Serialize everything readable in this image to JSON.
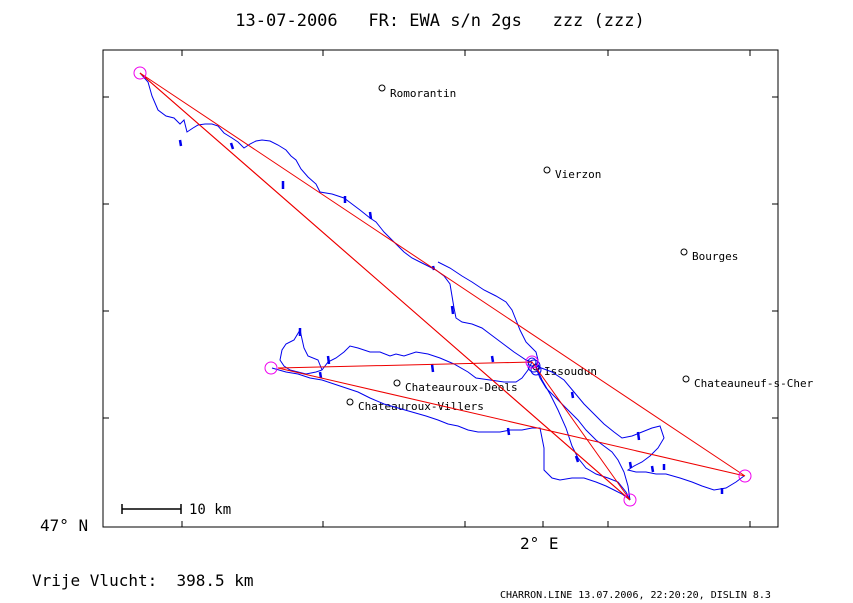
{
  "title": "13-07-2006   FR: EWA s/n 2gs   zzz (zzz)",
  "axes": {
    "y_label": "47° N",
    "x_label": "2° E"
  },
  "scale_bar": {
    "label": "10 km"
  },
  "footer": {
    "distance": "Vrije Vlucht:  398.5 km",
    "credit": "CHARRON.LINE 13.07.2006, 22:20:20, DISLIN 8.3"
  },
  "cities": [
    {
      "name": "Romorantin"
    },
    {
      "name": "Vierzon"
    },
    {
      "name": "Bourges"
    },
    {
      "name": "Issoudun"
    },
    {
      "name": "Chateauneuf-s-Cher"
    },
    {
      "name": "Chateauroux-Deols"
    },
    {
      "name": "Chateauroux-Villers"
    }
  ],
  "colors": {
    "track": "#0000ee",
    "route": "#ee0000",
    "turnpoint": "#ee00ee",
    "frame": "#000000"
  }
}
